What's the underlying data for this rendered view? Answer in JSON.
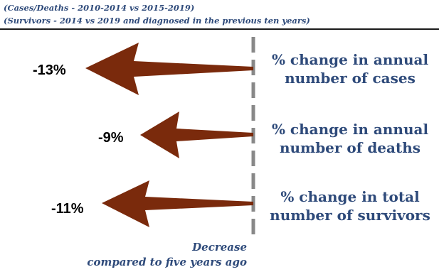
{
  "header": {
    "subtitle_1": "(Cases/Deaths - 2010-2014 vs 2015-2019)",
    "subtitle_2": "(Survivors - 2014 vs 2019 and diagnosed in the previous ten years)"
  },
  "rows": [
    {
      "value_label": "-13%",
      "label_line1": "% change in annual",
      "label_line2": "number of cases"
    },
    {
      "value_label": "-9%",
      "label_line1": "% change in annual",
      "label_line2": "number of deaths"
    },
    {
      "value_label": "-11%",
      "label_line1": "% change in total",
      "label_line2": "number of survivors"
    }
  ],
  "caption": {
    "line1": "Decrease",
    "line2": "compared to five years ago"
  },
  "colors": {
    "arrow": "#7A2A0C",
    "text_blue": "#2E4A7A",
    "baseline_dash": "#888888"
  }
}
